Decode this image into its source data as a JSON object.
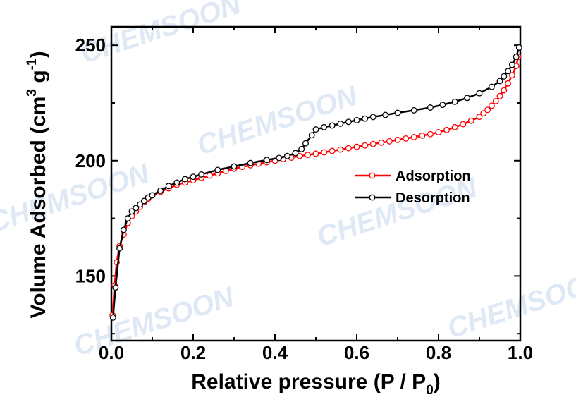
{
  "watermark": "CHEMSOON",
  "chart_data": {
    "type": "line",
    "title": "",
    "xlabel": "Relative pressure (P / P",
    "xlabel_sub": "0",
    "xlabel_end": ")",
    "ylabel": "Volume Adsorbed (cm",
    "ylabel_sup1": "3",
    "ylabel_mid": " g",
    "ylabel_sup2": "-1",
    "ylabel_end": ")",
    "xlim": [
      0,
      1.0
    ],
    "ylim": [
      122,
      258
    ],
    "xticks": [
      0.0,
      0.2,
      0.4,
      0.6,
      0.8,
      1.0
    ],
    "xtick_labels": [
      "0.0",
      "0.2",
      "0.4",
      "0.6",
      "0.8",
      "1.0"
    ],
    "yticks": [
      150,
      200,
      250
    ],
    "ytick_labels": [
      "150",
      "200",
      "250"
    ],
    "grid": false,
    "legend_position": "center-right",
    "series": [
      {
        "name": "Adsorption",
        "color": "#ff0000",
        "x": [
          0.003,
          0.008,
          0.013,
          0.02,
          0.03,
          0.04,
          0.05,
          0.06,
          0.07,
          0.08,
          0.09,
          0.1,
          0.12,
          0.14,
          0.16,
          0.18,
          0.2,
          0.22,
          0.24,
          0.26,
          0.28,
          0.3,
          0.32,
          0.34,
          0.36,
          0.38,
          0.4,
          0.42,
          0.44,
          0.46,
          0.48,
          0.5,
          0.52,
          0.54,
          0.56,
          0.58,
          0.6,
          0.62,
          0.64,
          0.66,
          0.68,
          0.7,
          0.72,
          0.74,
          0.76,
          0.78,
          0.8,
          0.82,
          0.84,
          0.86,
          0.88,
          0.9,
          0.91,
          0.92,
          0.93,
          0.94,
          0.95,
          0.96,
          0.97,
          0.98,
          0.99,
          0.995
        ],
        "y": [
          133,
          146,
          156,
          163,
          168,
          173,
          176,
          178,
          180,
          182,
          183.5,
          185,
          186.5,
          188,
          189.5,
          190.5,
          191.5,
          192.5,
          193.5,
          194.5,
          195.5,
          196.5,
          197.3,
          198,
          198.7,
          199.3,
          200,
          200.7,
          201.3,
          202,
          202.5,
          203,
          203.6,
          204.2,
          204.8,
          205.4,
          206,
          206.6,
          207.2,
          207.8,
          208.4,
          209,
          209.6,
          210.2,
          210.8,
          211.5,
          212.3,
          213.3,
          214.5,
          215.8,
          217.3,
          219,
          220.5,
          222,
          223.8,
          225.8,
          228,
          230.5,
          233.5,
          237,
          241,
          245
        ]
      },
      {
        "name": "Desorption",
        "color": "#000000",
        "x": [
          0.004,
          0.01,
          0.02,
          0.03,
          0.04,
          0.05,
          0.06,
          0.07,
          0.08,
          0.09,
          0.1,
          0.12,
          0.14,
          0.16,
          0.18,
          0.2,
          0.22,
          0.26,
          0.3,
          0.34,
          0.38,
          0.41,
          0.43,
          0.45,
          0.465,
          0.475,
          0.49,
          0.5,
          0.52,
          0.54,
          0.56,
          0.58,
          0.6,
          0.62,
          0.64,
          0.67,
          0.7,
          0.74,
          0.78,
          0.81,
          0.84,
          0.87,
          0.9,
          0.93,
          0.95,
          0.96,
          0.97,
          0.98,
          0.99,
          0.997
        ],
        "y": [
          132,
          145,
          162,
          170,
          175,
          178,
          179.5,
          181,
          182.5,
          184,
          185,
          187,
          189,
          190.5,
          192,
          193,
          194,
          196,
          197.5,
          199,
          200.3,
          201.2,
          202,
          203.3,
          205,
          207.5,
          211,
          213.5,
          214.5,
          215.2,
          216,
          216.8,
          217.5,
          218.2,
          218.9,
          219.8,
          220.7,
          221.8,
          223,
          224.2,
          225.5,
          227.2,
          229.2,
          232,
          234.5,
          236.5,
          238.8,
          241.5,
          245,
          249
        ]
      }
    ]
  }
}
